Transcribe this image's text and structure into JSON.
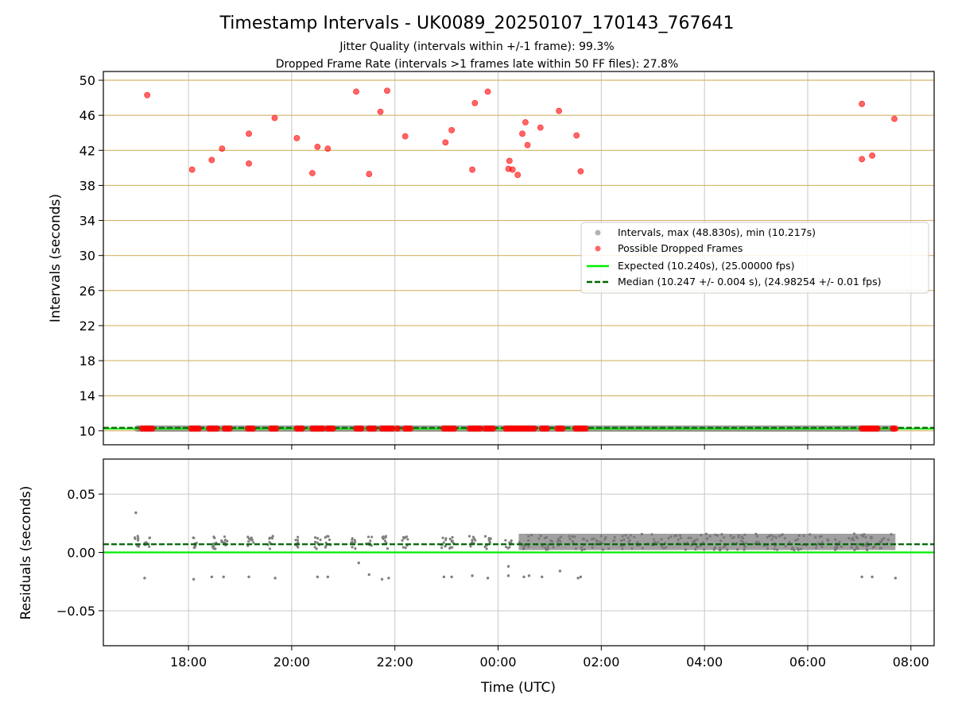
{
  "chart_data": {
    "title": "Timestamp Intervals - UK0089_20250107_170143_767641",
    "subtitles": [
      "Jitter Quality (intervals within +/-1 frame): 99.3%",
      "Dropped Frame Rate (intervals >1 frames late within 50 FF files): 27.8%"
    ],
    "colors": {
      "intervals": "#808080",
      "dropped": "#ff0000",
      "expected": "#00ee00",
      "median": "#006400",
      "threshold_grid": "#d4b46a",
      "grid": "#c8c8c8"
    },
    "panels": [
      {
        "type": "scatter",
        "ylabel": "Intervals (seconds)",
        "ylim": [
          8.4,
          51
        ],
        "yticks": [
          "10",
          "14",
          "18",
          "22",
          "26",
          "30",
          "34",
          "38",
          "42",
          "46",
          "50"
        ],
        "threshold_gridlines": [
          10,
          14,
          18,
          22,
          26,
          30,
          34,
          38,
          42,
          46,
          50
        ],
        "legend_position": "center-right",
        "legend": [
          "Intervals, max (48.830s), min (10.217s)",
          "Possible Dropped Frames",
          "Expected (10.240s), (25.00000 fps)",
          "Median (10.247 +/- 0.004 s), (24.98254 +/- 0.01 fps)"
        ],
        "expected": 10.24,
        "median": 10.247,
        "interval_band": {
          "x_start": 17.0,
          "x_end": 31.7,
          "y": 10.25
        },
        "dropped_low_y": 10.25,
        "dropped_low_x": [
          17.1,
          17.15,
          17.2,
          17.25,
          17.3,
          18.05,
          18.1,
          18.15,
          18.2,
          18.4,
          18.45,
          18.5,
          18.55,
          18.7,
          18.75,
          18.8,
          19.15,
          19.2,
          19.25,
          19.6,
          19.65,
          19.7,
          20.1,
          20.15,
          20.2,
          20.4,
          20.45,
          20.5,
          20.55,
          20.6,
          20.7,
          20.75,
          20.8,
          21.25,
          21.3,
          21.35,
          21.5,
          21.55,
          21.6,
          21.75,
          21.8,
          21.85,
          21.9,
          21.95,
          22.05,
          22.2,
          22.25,
          22.3,
          22.95,
          23.0,
          23.05,
          23.1,
          23.15,
          23.45,
          23.5,
          23.55,
          23.6,
          23.65,
          23.75,
          23.8,
          23.85,
          23.9,
          24.15,
          24.2,
          24.25,
          24.3,
          24.35,
          24.4,
          24.45,
          24.5,
          24.55,
          24.6,
          24.65,
          24.7,
          24.85,
          24.9,
          24.95,
          25.15,
          25.2,
          25.25,
          25.5,
          25.55,
          25.6,
          25.65,
          25.7,
          31.05,
          31.1,
          31.15,
          31.2,
          31.25,
          31.3,
          31.35,
          31.65,
          31.7
        ],
        "dropped_high": [
          {
            "x": 17.2,
            "y": 48.3
          },
          {
            "x": 18.07,
            "y": 39.8
          },
          {
            "x": 18.45,
            "y": 40.9
          },
          {
            "x": 18.65,
            "y": 42.2
          },
          {
            "x": 19.17,
            "y": 43.9
          },
          {
            "x": 19.17,
            "y": 40.5
          },
          {
            "x": 19.67,
            "y": 45.7
          },
          {
            "x": 20.1,
            "y": 43.4
          },
          {
            "x": 20.4,
            "y": 39.4
          },
          {
            "x": 20.5,
            "y": 42.4
          },
          {
            "x": 20.7,
            "y": 42.2
          },
          {
            "x": 21.25,
            "y": 48.7
          },
          {
            "x": 21.5,
            "y": 39.3
          },
          {
            "x": 21.72,
            "y": 46.4
          },
          {
            "x": 21.85,
            "y": 48.8
          },
          {
            "x": 22.2,
            "y": 43.6
          },
          {
            "x": 22.98,
            "y": 42.9
          },
          {
            "x": 23.1,
            "y": 44.3
          },
          {
            "x": 23.5,
            "y": 39.8
          },
          {
            "x": 23.55,
            "y": 47.4
          },
          {
            "x": 23.8,
            "y": 48.7
          },
          {
            "x": 24.2,
            "y": 39.9
          },
          {
            "x": 24.22,
            "y": 40.8
          },
          {
            "x": 24.28,
            "y": 39.8
          },
          {
            "x": 24.38,
            "y": 39.2
          },
          {
            "x": 24.47,
            "y": 43.9
          },
          {
            "x": 24.53,
            "y": 45.2
          },
          {
            "x": 24.57,
            "y": 42.6
          },
          {
            "x": 24.82,
            "y": 44.6
          },
          {
            "x": 25.18,
            "y": 46.5
          },
          {
            "x": 25.52,
            "y": 43.7
          },
          {
            "x": 25.6,
            "y": 39.6
          },
          {
            "x": 31.05,
            "y": 47.3
          },
          {
            "x": 31.05,
            "y": 41.0
          },
          {
            "x": 31.25,
            "y": 41.4
          },
          {
            "x": 31.68,
            "y": 45.6
          }
        ]
      },
      {
        "type": "scatter",
        "xlabel": "Time (UTC)",
        "ylabel": "Residuals (seconds)",
        "xlim": [
          16.35,
          32.45
        ],
        "ylim": [
          -0.08,
          0.08
        ],
        "yticks": [
          {
            "value": 0.05,
            "label": "0.05"
          },
          {
            "value": 0.0,
            "label": "0.00"
          },
          {
            "value": -0.05,
            "label": "−0.05"
          }
        ],
        "xticks": [
          {
            "value": 18,
            "label": "18:00"
          },
          {
            "value": 20,
            "label": "20:00"
          },
          {
            "value": 22,
            "label": "22:00"
          },
          {
            "value": 24,
            "label": "00:00"
          },
          {
            "value": 26,
            "label": "02:00"
          },
          {
            "value": 28,
            "label": "04:00"
          },
          {
            "value": 30,
            "label": "06:00"
          },
          {
            "value": 32,
            "label": "08:00"
          }
        ],
        "expected": 0.0,
        "median": 0.007,
        "dense_band": {
          "x_start": 24.4,
          "x_end": 31.7,
          "y_min": 0.002,
          "y_max": 0.016
        },
        "sparse_clusters": [
          17.0,
          17.2,
          18.1,
          18.5,
          18.7,
          19.2,
          19.6,
          20.1,
          20.5,
          20.7,
          21.2,
          21.5,
          21.8,
          22.2,
          22.95,
          23.1,
          23.5,
          23.8,
          24.2
        ],
        "outliers": [
          {
            "x": 16.98,
            "y": 0.034
          },
          {
            "x": 17.15,
            "y": -0.022
          },
          {
            "x": 18.1,
            "y": -0.023
          },
          {
            "x": 18.45,
            "y": -0.021
          },
          {
            "x": 18.68,
            "y": -0.021
          },
          {
            "x": 19.17,
            "y": -0.021
          },
          {
            "x": 19.68,
            "y": -0.022
          },
          {
            "x": 20.5,
            "y": -0.021
          },
          {
            "x": 20.7,
            "y": -0.021
          },
          {
            "x": 21.5,
            "y": -0.019
          },
          {
            "x": 21.75,
            "y": -0.023
          },
          {
            "x": 21.88,
            "y": -0.022
          },
          {
            "x": 22.95,
            "y": -0.021
          },
          {
            "x": 23.1,
            "y": -0.021
          },
          {
            "x": 23.5,
            "y": -0.02
          },
          {
            "x": 23.8,
            "y": -0.022
          },
          {
            "x": 24.2,
            "y": -0.02
          },
          {
            "x": 24.5,
            "y": -0.021
          },
          {
            "x": 24.6,
            "y": -0.02
          },
          {
            "x": 24.85,
            "y": -0.021
          },
          {
            "x": 25.2,
            "y": -0.016
          },
          {
            "x": 25.55,
            "y": -0.022
          },
          {
            "x": 25.6,
            "y": -0.021
          },
          {
            "x": 31.05,
            "y": -0.021
          },
          {
            "x": 31.25,
            "y": -0.021
          },
          {
            "x": 31.7,
            "y": -0.022
          },
          {
            "x": 21.3,
            "y": -0.009
          },
          {
            "x": 24.2,
            "y": -0.012
          }
        ]
      }
    ]
  }
}
